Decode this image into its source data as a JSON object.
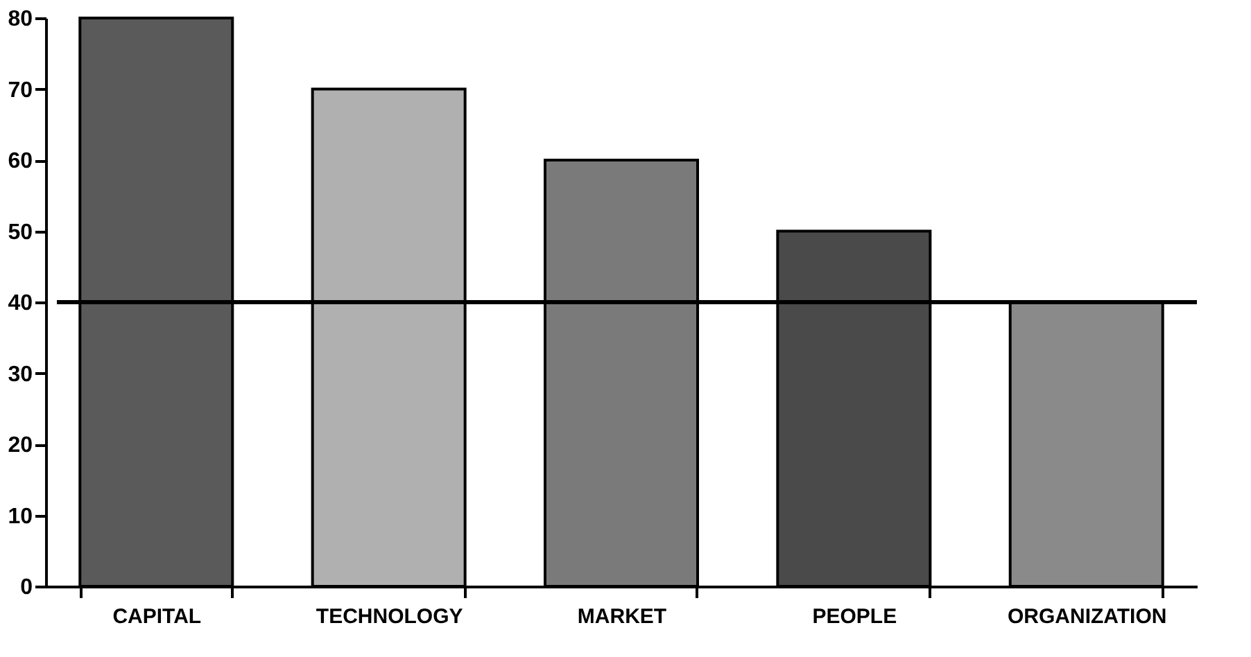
{
  "chart_data": {
    "type": "bar",
    "categories": [
      "CAPITAL",
      "TECHNOLOGY",
      "MARKET",
      "PEOPLE",
      "ORGANIZATION"
    ],
    "values": [
      80,
      70,
      60,
      50,
      40
    ],
    "colors": [
      "#5a5a5a",
      "#b0b0b0",
      "#7a7a7a",
      "#4a4a4a",
      "#8a8a8a"
    ],
    "ylim": [
      0,
      80
    ],
    "yticks": [
      0,
      10,
      20,
      30,
      40,
      50,
      60,
      70,
      80
    ],
    "ref_lines": [
      {
        "axis": "y",
        "value": 40,
        "color": "#000000",
        "line_style": "solid"
      }
    ],
    "grid": false
  }
}
